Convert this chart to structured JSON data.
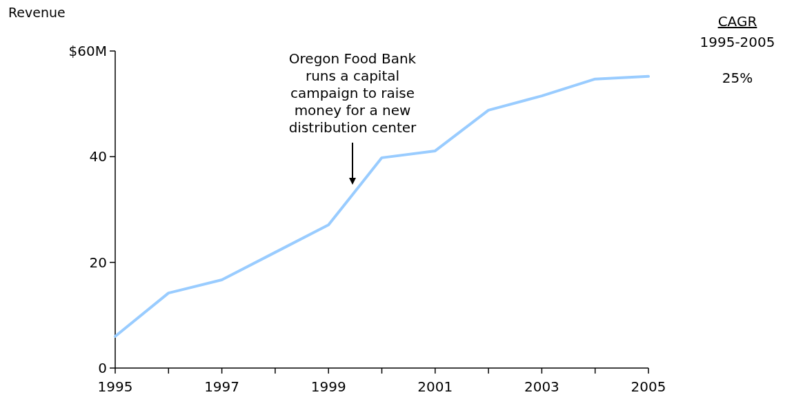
{
  "chart_data": {
    "type": "line",
    "ylabel": "Revenue",
    "x": [
      1995,
      1996,
      1997,
      1998,
      1999,
      2000,
      2001,
      2002,
      2003,
      2004,
      2005
    ],
    "series": [
      {
        "color": "#99ccff",
        "values": [
          6.0,
          14.2,
          16.7,
          21.9,
          27.1,
          39.8,
          41.1,
          48.8,
          51.5,
          54.7,
          55.2
        ]
      }
    ],
    "xlim": [
      1995,
      2005
    ],
    "ylim": [
      0,
      60
    ],
    "xticks": [
      1995,
      {
        "value": 1996,
        "label": null
      },
      1997,
      {
        "value": 1998,
        "label": null
      },
      1999,
      {
        "value": 2000,
        "label": null
      },
      2001,
      {
        "value": 2002,
        "label": null
      },
      2003,
      {
        "value": 2004,
        "label": null
      },
      2005
    ],
    "yticks": [
      0,
      20,
      40,
      {
        "value": 60,
        "label": "$60M"
      }
    ],
    "grid": false,
    "marker": "none",
    "line_style": "solid",
    "annotations": [
      "Oregon Food Bank\nruns a capital\ncampaign to raise\nmoney for a new\ndistribution center",
      "CAGR",
      "1995-2005",
      "25%"
    ]
  }
}
